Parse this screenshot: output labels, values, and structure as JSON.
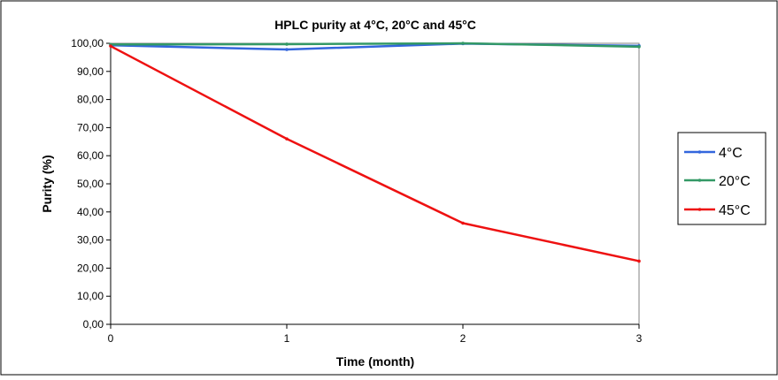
{
  "chart_data": {
    "type": "line",
    "title": "HPLC purity  at 4°C, 20°C and 45°C",
    "xlabel": "Time (month)",
    "ylabel": "Purity (%)",
    "x": [
      0,
      1,
      2,
      3
    ],
    "x_tick_labels": [
      "0",
      "1",
      "2",
      "3"
    ],
    "xlim": [
      0,
      3
    ],
    "ylim": [
      0,
      100
    ],
    "y_tick_labels": [
      "0,00",
      "10,00",
      "20,00",
      "30,00",
      "40,00",
      "50,00",
      "60,00",
      "70,00",
      "80,00",
      "90,00",
      "100,00"
    ],
    "grid": false,
    "legend_position": "right",
    "series": [
      {
        "name": "4°C",
        "values": [
          99.3,
          97.8,
          99.9,
          99.1
        ],
        "color": "#3366dd"
      },
      {
        "name": "20°C",
        "values": [
          99.6,
          99.7,
          100.0,
          98.8
        ],
        "color": "#339966"
      },
      {
        "name": "45°C",
        "values": [
          99.0,
          66.0,
          36.0,
          22.5
        ],
        "color": "#ee1111"
      }
    ]
  }
}
